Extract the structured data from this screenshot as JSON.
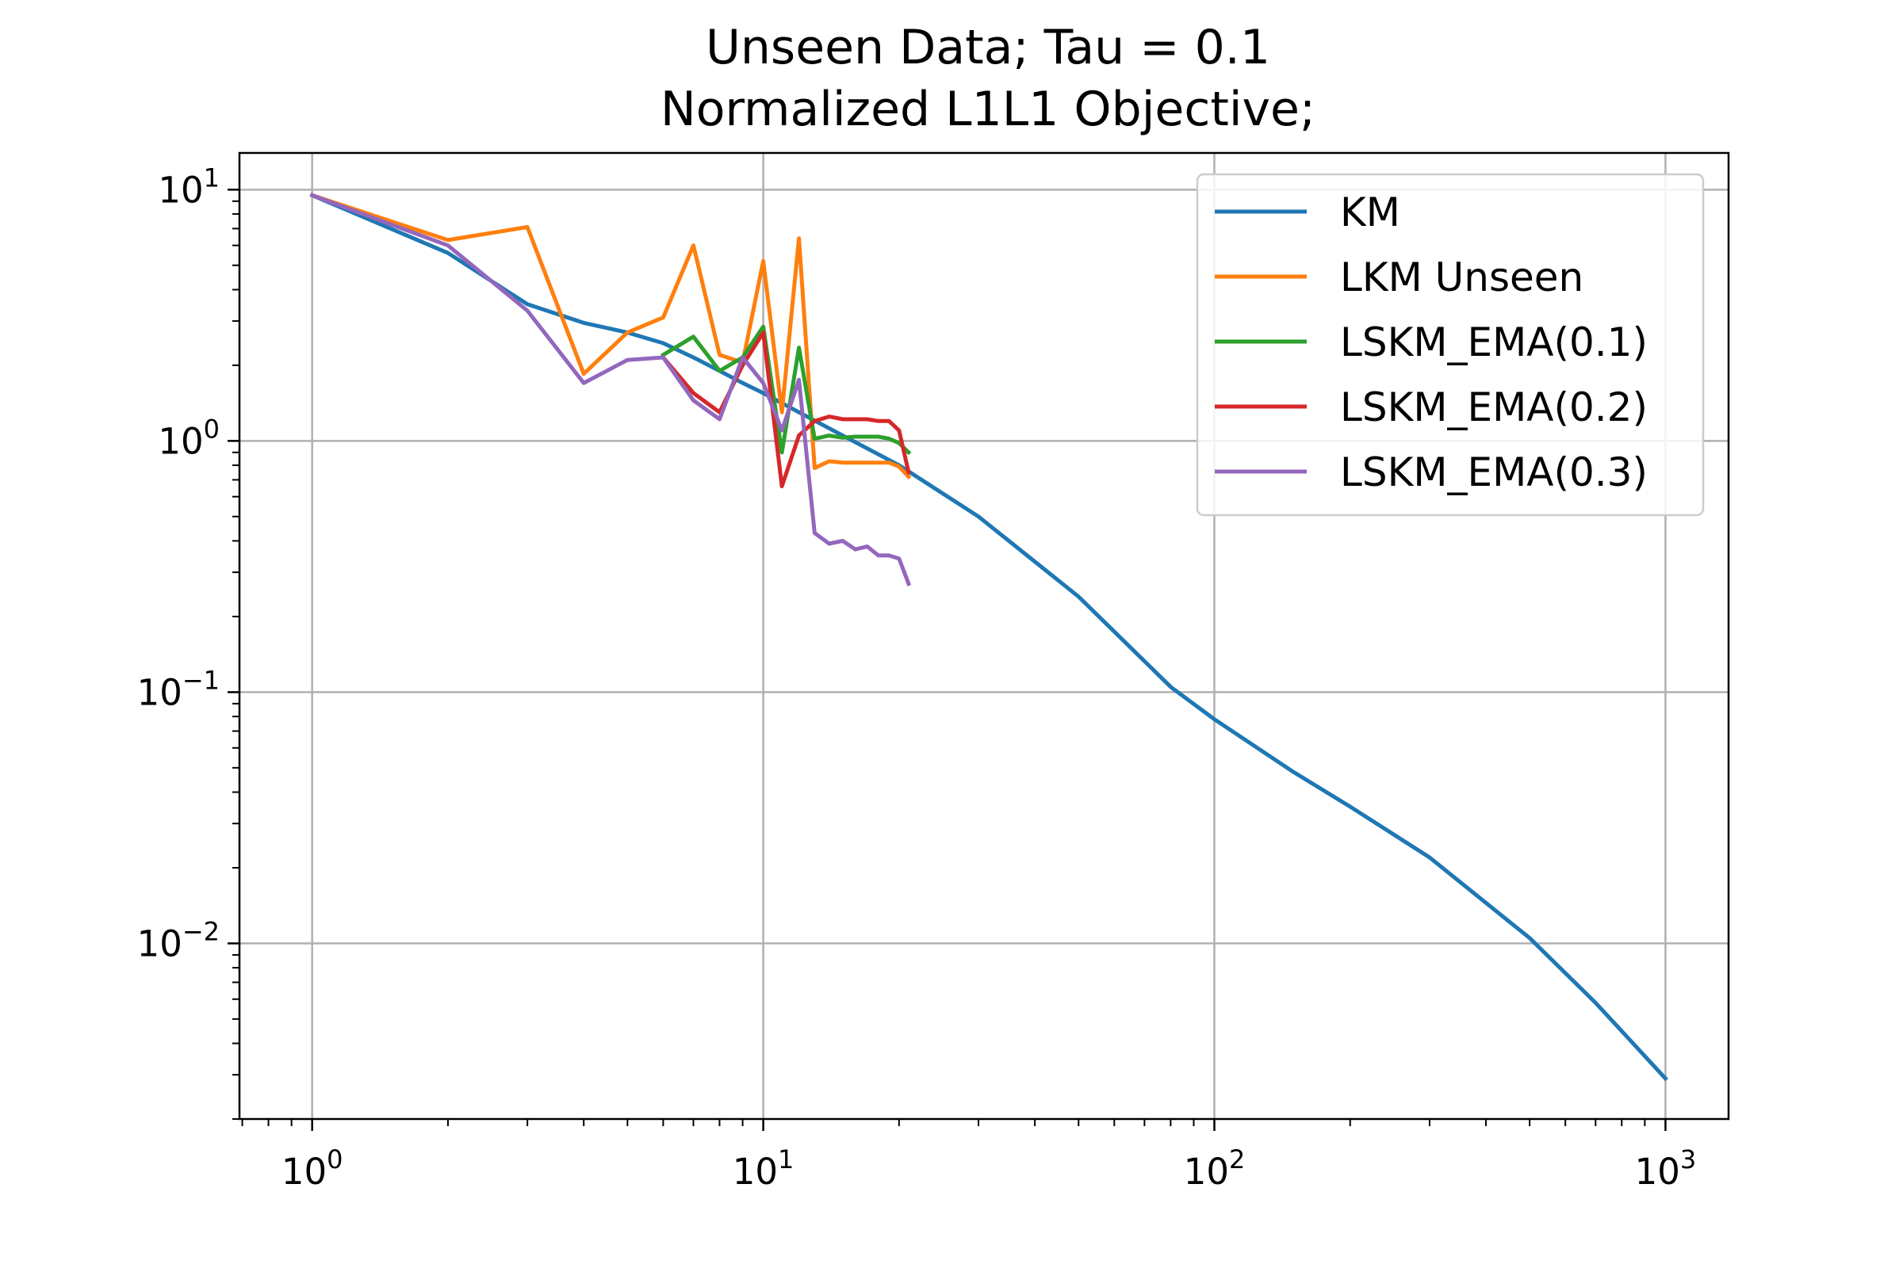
{
  "chart_data": {
    "type": "line",
    "title": "Unseen Data; Tau = 0.1",
    "subtitle": "Normalized L1L1 Objective;",
    "xlabel": "",
    "ylabel": "",
    "xscale": "log",
    "yscale": "log",
    "xlim": [
      0.69,
      1380
    ],
    "ylim": [
      0.002,
      14
    ],
    "grid": true,
    "legend_position": "top-right",
    "x_ticks": [
      {
        "value": 1,
        "base": "10",
        "exp": "0"
      },
      {
        "value": 10,
        "base": "10",
        "exp": "1"
      },
      {
        "value": 100,
        "base": "10",
        "exp": "2"
      },
      {
        "value": 1000,
        "base": "10",
        "exp": "3"
      }
    ],
    "y_ticks": [
      {
        "value": 10,
        "base": "10",
        "exp": "1"
      },
      {
        "value": 1,
        "base": "10",
        "exp": "0"
      },
      {
        "value": 0.1,
        "base": "10",
        "exp": "−1"
      },
      {
        "value": 0.01,
        "base": "10",
        "exp": "−2"
      }
    ],
    "series": [
      {
        "name": "KM",
        "color": "#1f77b4",
        "x": [
          1,
          2,
          3,
          4,
          5,
          6,
          7,
          8,
          9,
          10,
          12,
          15,
          20,
          30,
          50,
          80,
          100,
          150,
          200,
          300,
          500,
          700,
          1000
        ],
        "y": [
          9.5,
          5.6,
          3.5,
          2.95,
          2.7,
          2.45,
          2.15,
          1.9,
          1.7,
          1.55,
          1.3,
          1.05,
          0.8,
          0.5,
          0.24,
          0.105,
          0.078,
          0.048,
          0.035,
          0.022,
          0.0105,
          0.0058,
          0.0029
        ]
      },
      {
        "name": "LKM Unseen",
        "color": "#ff7f0e",
        "x": [
          1,
          2,
          3,
          4,
          5,
          6,
          7,
          8,
          9,
          10,
          11,
          12,
          13,
          14,
          15,
          16,
          17,
          18,
          19,
          20,
          21
        ],
        "y": [
          9.5,
          6.3,
          7.1,
          1.85,
          2.7,
          3.1,
          6.0,
          2.2,
          2.05,
          5.2,
          1.3,
          6.4,
          0.78,
          0.83,
          0.82,
          0.82,
          0.82,
          0.82,
          0.82,
          0.79,
          0.72
        ]
      },
      {
        "name": "LSKM_EMA(0.1)",
        "color": "#2ca02c",
        "x": [
          6,
          7,
          8,
          9,
          10,
          11,
          12,
          13,
          14,
          15,
          16,
          17,
          18,
          19,
          20,
          21
        ],
        "y": [
          2.2,
          2.6,
          1.9,
          2.15,
          2.85,
          0.9,
          2.35,
          1.02,
          1.05,
          1.03,
          1.04,
          1.04,
          1.04,
          1.02,
          0.98,
          0.9
        ]
      },
      {
        "name": "LSKM_EMA(0.2)",
        "color": "#d62728",
        "x": [
          6,
          7,
          8,
          9,
          10,
          11,
          12,
          13,
          14,
          15,
          16,
          17,
          18,
          19,
          20,
          21
        ],
        "y": [
          2.15,
          1.55,
          1.3,
          2.0,
          2.7,
          0.66,
          1.05,
          1.2,
          1.25,
          1.22,
          1.22,
          1.22,
          1.2,
          1.2,
          1.1,
          0.75
        ]
      },
      {
        "name": "LSKM_EMA(0.3)",
        "color": "#9467bd",
        "x": [
          1,
          2,
          3,
          4,
          5,
          6,
          7,
          8,
          9,
          10,
          11,
          12,
          13,
          14,
          15,
          16,
          17,
          18,
          19,
          20,
          21
        ],
        "y": [
          9.5,
          6.0,
          3.3,
          1.7,
          2.1,
          2.15,
          1.45,
          1.22,
          2.15,
          1.7,
          1.1,
          1.75,
          0.43,
          0.39,
          0.4,
          0.37,
          0.38,
          0.35,
          0.35,
          0.34,
          0.27
        ]
      }
    ]
  }
}
